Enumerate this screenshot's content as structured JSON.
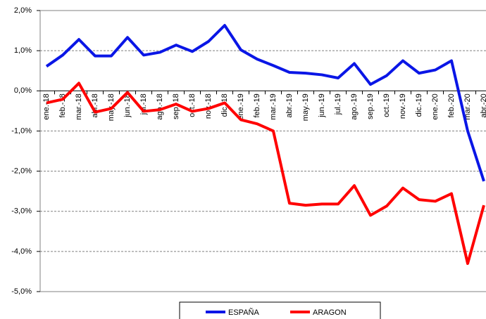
{
  "chart_data": {
    "type": "line",
    "categories": [
      "ene.-18",
      "feb.-18",
      "mar.-18",
      "abr.-18",
      "may.-18",
      "jun.-18",
      "jul.-18",
      "ago.-18",
      "sep.-18",
      "oct.-18",
      "nov.-18",
      "dic.-18",
      "ene.-19",
      "feb.-19",
      "mar.-19",
      "abr.-19",
      "may.-19",
      "jun.-19",
      "jul.-19",
      "ago.-19",
      "sep.-19",
      "oct.-19",
      "nov.-19",
      "dic.-19",
      "ene.-20",
      "feb.-20",
      "mar.-20",
      "abr.-20"
    ],
    "series": [
      {
        "name": "ESPAÑA",
        "color": "#0a16e6",
        "values": [
          0.61,
          0.89,
          1.28,
          0.87,
          0.87,
          1.33,
          0.89,
          0.96,
          1.14,
          0.98,
          1.23,
          1.63,
          1.02,
          0.79,
          0.63,
          0.46,
          0.44,
          0.4,
          0.32,
          0.68,
          0.16,
          0.38,
          0.75,
          0.44,
          0.52,
          0.75,
          -1.0,
          -2.25
        ]
      },
      {
        "name": "ARAGON",
        "color": "#ff0000",
        "values": [
          -0.3,
          -0.21,
          0.19,
          -0.53,
          -0.44,
          -0.04,
          -0.51,
          -0.47,
          -0.33,
          -0.51,
          -0.44,
          -0.3,
          -0.72,
          -0.82,
          -1.0,
          -2.8,
          -2.85,
          -2.82,
          -2.82,
          -2.36,
          -3.1,
          -2.87,
          -2.42,
          -2.71,
          -2.75,
          -2.56,
          -4.3,
          -2.85
        ]
      }
    ],
    "ylim": [
      -5,
      2
    ],
    "yticks": [
      {
        "value": -5,
        "label": "-5,0%"
      },
      {
        "value": -4,
        "label": "-4,0%"
      },
      {
        "value": -3,
        "label": "-3,0%"
      },
      {
        "value": -2,
        "label": "-2,0%"
      },
      {
        "value": -1,
        "label": "-1,0%"
      },
      {
        "value": 0,
        "label": "0,0%"
      },
      {
        "value": 1,
        "label": "1,0%"
      },
      {
        "value": 2,
        "label": "2,0%"
      }
    ],
    "grid": true,
    "legend": "bottom"
  }
}
